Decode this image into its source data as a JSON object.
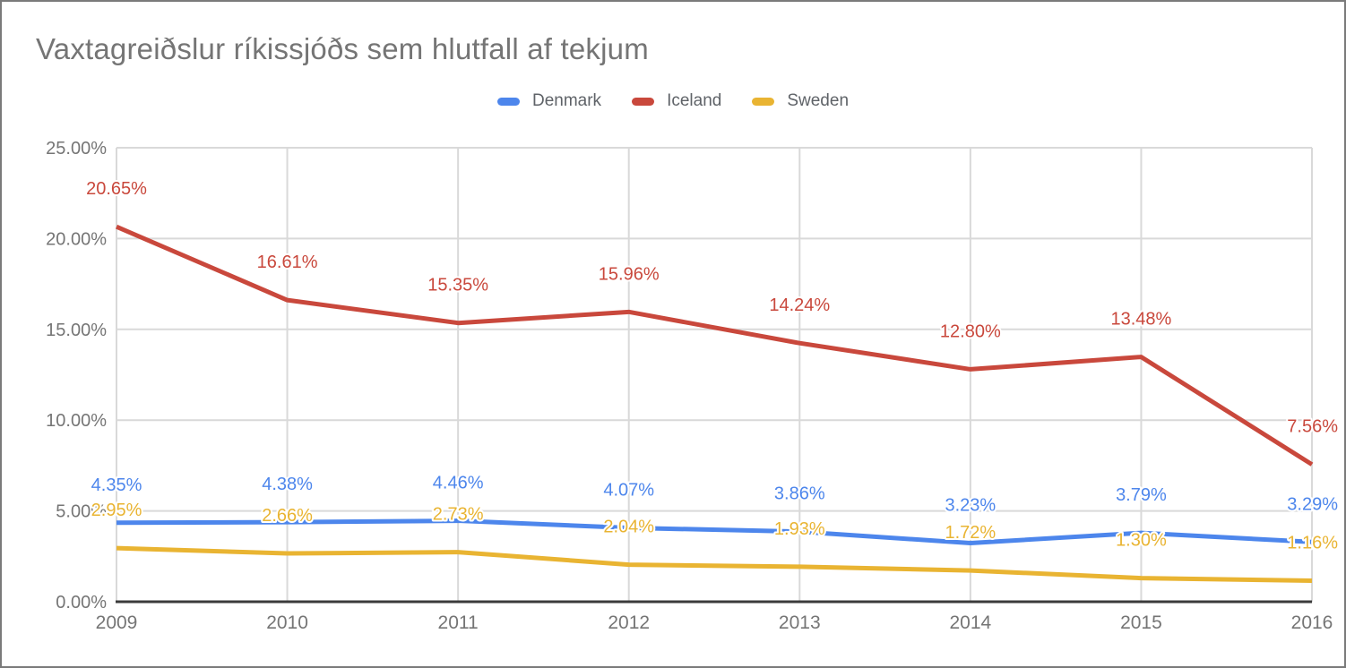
{
  "chart_data": {
    "type": "line",
    "title": "Vaxtagreiðslur ríkissjóðs sem hlutfall af tekjum",
    "categories": [
      "2009",
      "2010",
      "2011",
      "2012",
      "2013",
      "2014",
      "2015",
      "2016"
    ],
    "series": [
      {
        "name": "Denmark",
        "color": "#4d86ec",
        "values": [
          4.35,
          4.38,
          4.46,
          4.07,
          3.86,
          3.23,
          3.79,
          3.29
        ],
        "point_labels": [
          "4.35%",
          "4.38%",
          "4.46%",
          "4.07%",
          "3.86%",
          "3.23%",
          "3.79%",
          "3.29%"
        ]
      },
      {
        "name": "Iceland",
        "color": "#c9483c",
        "values": [
          20.65,
          16.61,
          15.35,
          15.96,
          14.24,
          12.8,
          13.48,
          7.56
        ],
        "point_labels": [
          "20.65%",
          "16.61%",
          "15.35%",
          "15.96%",
          "14.24%",
          "12.80%",
          "13.48%",
          "7.56%"
        ]
      },
      {
        "name": "Sweden",
        "color": "#e9b432",
        "values": [
          2.95,
          2.66,
          2.73,
          2.04,
          1.93,
          1.72,
          1.3,
          1.16
        ],
        "point_labels": [
          "2.95%",
          "2.66%",
          "2.73%",
          "2.04%",
          "1.93%",
          "1.72%",
          "1.30%",
          "1.16%"
        ]
      }
    ],
    "xlabel": "",
    "ylabel": "",
    "ylim": [
      0,
      25
    ],
    "ytick_labels": [
      "0.00%",
      "5.00%",
      "10.00%",
      "15.00%",
      "20.00%",
      "25.00%"
    ],
    "grid": true,
    "legend_position": "top"
  },
  "style_colors": {
    "title_text": "#757575",
    "axis_tick_text": "#757575",
    "legend_text": "#5f6368",
    "gridline": "#d9d9d9",
    "baseline": "#3b3b3b",
    "label_halo": "#ffffff",
    "frame_border": "#7a7a7a",
    "background": "#ffffff"
  }
}
